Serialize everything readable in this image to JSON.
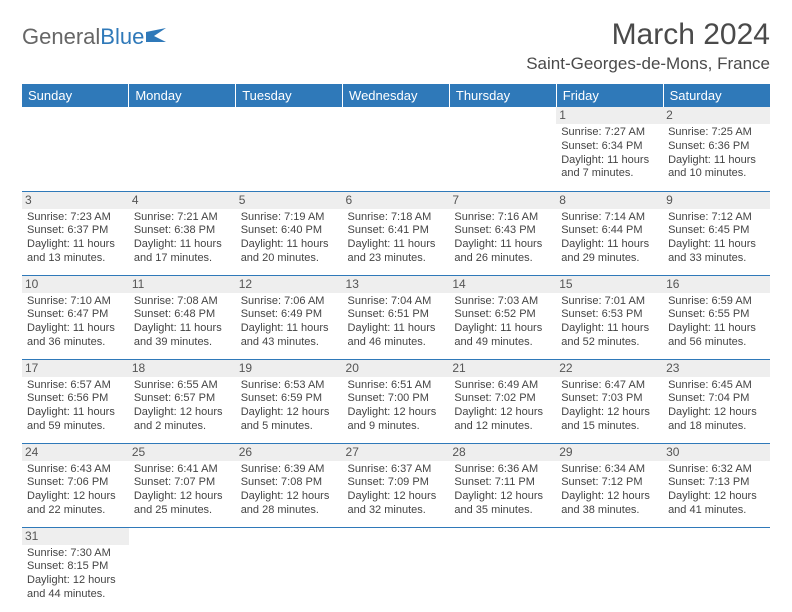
{
  "logo": {
    "part1": "General",
    "part2": "Blue"
  },
  "title": "March 2024",
  "location": "Saint-Georges-de-Mons, France",
  "dayHeaders": [
    "Sunday",
    "Monday",
    "Tuesday",
    "Wednesday",
    "Thursday",
    "Friday",
    "Saturday"
  ],
  "colors": {
    "headerBg": "#2f79b9",
    "headerText": "#ffffff",
    "daynumBg": "#eeeeee",
    "rowBorder": "#2f79b9",
    "bodyText": "#444444"
  },
  "fonts": {
    "title_pt": 30,
    "location_pt": 17,
    "dayheader_pt": 13,
    "cell_pt": 11,
    "daynum_pt": 12
  },
  "weeks": [
    [
      null,
      null,
      null,
      null,
      null,
      {
        "n": "1",
        "sr": "Sunrise: 7:27 AM",
        "ss": "Sunset: 6:34 PM",
        "d1": "Daylight: 11 hours",
        "d2": "and 7 minutes."
      },
      {
        "n": "2",
        "sr": "Sunrise: 7:25 AM",
        "ss": "Sunset: 6:36 PM",
        "d1": "Daylight: 11 hours",
        "d2": "and 10 minutes."
      }
    ],
    [
      {
        "n": "3",
        "sr": "Sunrise: 7:23 AM",
        "ss": "Sunset: 6:37 PM",
        "d1": "Daylight: 11 hours",
        "d2": "and 13 minutes."
      },
      {
        "n": "4",
        "sr": "Sunrise: 7:21 AM",
        "ss": "Sunset: 6:38 PM",
        "d1": "Daylight: 11 hours",
        "d2": "and 17 minutes."
      },
      {
        "n": "5",
        "sr": "Sunrise: 7:19 AM",
        "ss": "Sunset: 6:40 PM",
        "d1": "Daylight: 11 hours",
        "d2": "and 20 minutes."
      },
      {
        "n": "6",
        "sr": "Sunrise: 7:18 AM",
        "ss": "Sunset: 6:41 PM",
        "d1": "Daylight: 11 hours",
        "d2": "and 23 minutes."
      },
      {
        "n": "7",
        "sr": "Sunrise: 7:16 AM",
        "ss": "Sunset: 6:43 PM",
        "d1": "Daylight: 11 hours",
        "d2": "and 26 minutes."
      },
      {
        "n": "8",
        "sr": "Sunrise: 7:14 AM",
        "ss": "Sunset: 6:44 PM",
        "d1": "Daylight: 11 hours",
        "d2": "and 29 minutes."
      },
      {
        "n": "9",
        "sr": "Sunrise: 7:12 AM",
        "ss": "Sunset: 6:45 PM",
        "d1": "Daylight: 11 hours",
        "d2": "and 33 minutes."
      }
    ],
    [
      {
        "n": "10",
        "sr": "Sunrise: 7:10 AM",
        "ss": "Sunset: 6:47 PM",
        "d1": "Daylight: 11 hours",
        "d2": "and 36 minutes."
      },
      {
        "n": "11",
        "sr": "Sunrise: 7:08 AM",
        "ss": "Sunset: 6:48 PM",
        "d1": "Daylight: 11 hours",
        "d2": "and 39 minutes."
      },
      {
        "n": "12",
        "sr": "Sunrise: 7:06 AM",
        "ss": "Sunset: 6:49 PM",
        "d1": "Daylight: 11 hours",
        "d2": "and 43 minutes."
      },
      {
        "n": "13",
        "sr": "Sunrise: 7:04 AM",
        "ss": "Sunset: 6:51 PM",
        "d1": "Daylight: 11 hours",
        "d2": "and 46 minutes."
      },
      {
        "n": "14",
        "sr": "Sunrise: 7:03 AM",
        "ss": "Sunset: 6:52 PM",
        "d1": "Daylight: 11 hours",
        "d2": "and 49 minutes."
      },
      {
        "n": "15",
        "sr": "Sunrise: 7:01 AM",
        "ss": "Sunset: 6:53 PM",
        "d1": "Daylight: 11 hours",
        "d2": "and 52 minutes."
      },
      {
        "n": "16",
        "sr": "Sunrise: 6:59 AM",
        "ss": "Sunset: 6:55 PM",
        "d1": "Daylight: 11 hours",
        "d2": "and 56 minutes."
      }
    ],
    [
      {
        "n": "17",
        "sr": "Sunrise: 6:57 AM",
        "ss": "Sunset: 6:56 PM",
        "d1": "Daylight: 11 hours",
        "d2": "and 59 minutes."
      },
      {
        "n": "18",
        "sr": "Sunrise: 6:55 AM",
        "ss": "Sunset: 6:57 PM",
        "d1": "Daylight: 12 hours",
        "d2": "and 2 minutes."
      },
      {
        "n": "19",
        "sr": "Sunrise: 6:53 AM",
        "ss": "Sunset: 6:59 PM",
        "d1": "Daylight: 12 hours",
        "d2": "and 5 minutes."
      },
      {
        "n": "20",
        "sr": "Sunrise: 6:51 AM",
        "ss": "Sunset: 7:00 PM",
        "d1": "Daylight: 12 hours",
        "d2": "and 9 minutes."
      },
      {
        "n": "21",
        "sr": "Sunrise: 6:49 AM",
        "ss": "Sunset: 7:02 PM",
        "d1": "Daylight: 12 hours",
        "d2": "and 12 minutes."
      },
      {
        "n": "22",
        "sr": "Sunrise: 6:47 AM",
        "ss": "Sunset: 7:03 PM",
        "d1": "Daylight: 12 hours",
        "d2": "and 15 minutes."
      },
      {
        "n": "23",
        "sr": "Sunrise: 6:45 AM",
        "ss": "Sunset: 7:04 PM",
        "d1": "Daylight: 12 hours",
        "d2": "and 18 minutes."
      }
    ],
    [
      {
        "n": "24",
        "sr": "Sunrise: 6:43 AM",
        "ss": "Sunset: 7:06 PM",
        "d1": "Daylight: 12 hours",
        "d2": "and 22 minutes."
      },
      {
        "n": "25",
        "sr": "Sunrise: 6:41 AM",
        "ss": "Sunset: 7:07 PM",
        "d1": "Daylight: 12 hours",
        "d2": "and 25 minutes."
      },
      {
        "n": "26",
        "sr": "Sunrise: 6:39 AM",
        "ss": "Sunset: 7:08 PM",
        "d1": "Daylight: 12 hours",
        "d2": "and 28 minutes."
      },
      {
        "n": "27",
        "sr": "Sunrise: 6:37 AM",
        "ss": "Sunset: 7:09 PM",
        "d1": "Daylight: 12 hours",
        "d2": "and 32 minutes."
      },
      {
        "n": "28",
        "sr": "Sunrise: 6:36 AM",
        "ss": "Sunset: 7:11 PM",
        "d1": "Daylight: 12 hours",
        "d2": "and 35 minutes."
      },
      {
        "n": "29",
        "sr": "Sunrise: 6:34 AM",
        "ss": "Sunset: 7:12 PM",
        "d1": "Daylight: 12 hours",
        "d2": "and 38 minutes."
      },
      {
        "n": "30",
        "sr": "Sunrise: 6:32 AM",
        "ss": "Sunset: 7:13 PM",
        "d1": "Daylight: 12 hours",
        "d2": "and 41 minutes."
      }
    ],
    [
      {
        "n": "31",
        "sr": "Sunrise: 7:30 AM",
        "ss": "Sunset: 8:15 PM",
        "d1": "Daylight: 12 hours",
        "d2": "and 44 minutes."
      },
      null,
      null,
      null,
      null,
      null,
      null
    ]
  ]
}
